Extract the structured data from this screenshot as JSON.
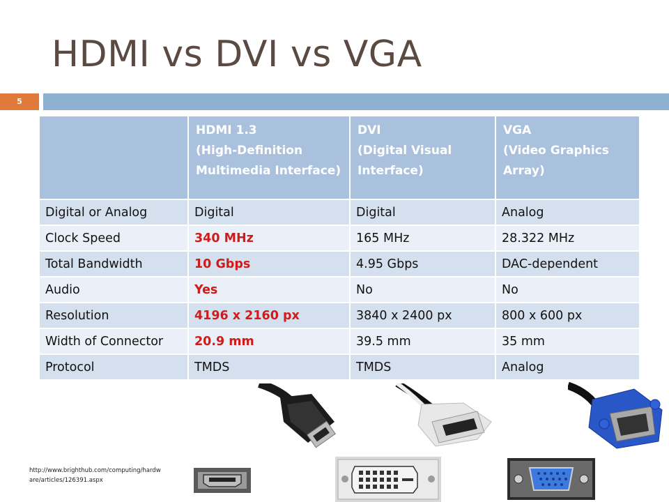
{
  "slide": {
    "title": "HDMI vs DVI vs VGA",
    "number": "5"
  },
  "table": {
    "headers": [
      "",
      "HDMI 1.3\n(High-Definition Multimedia Interface)",
      "DVI\n(Digital Visual Interface)",
      "VGA\n(Video Graphics Array)"
    ],
    "header_lines": [
      [],
      [
        "HDMI 1.3",
        "(High-Definition",
        "Multimedia Interface)"
      ],
      [
        "DVI",
        "(Digital Visual",
        "Interface)"
      ],
      [
        "VGA",
        "(Video Graphics",
        "Array)"
      ]
    ],
    "rows": [
      {
        "label": "Digital or Analog",
        "hdmi": "Digital",
        "dvi": "Digital",
        "vga": "Analog",
        "hdmi_highlight": false
      },
      {
        "label": "Clock Speed",
        "hdmi": "340 MHz",
        "dvi": "165 MHz",
        "vga": "28.322 MHz",
        "hdmi_highlight": true
      },
      {
        "label": "Total Bandwidth",
        "hdmi": "10 Gbps",
        "dvi": "4.95 Gbps",
        "vga": "DAC-dependent",
        "hdmi_highlight": true
      },
      {
        "label": "Audio",
        "hdmi": "Yes",
        "dvi": "No",
        "vga": "No",
        "hdmi_highlight": true
      },
      {
        "label": "Resolution",
        "hdmi": "4196 x 2160 px",
        "dvi": "3840 x 2400 px",
        "vga": "800 x 600 px",
        "hdmi_highlight": true
      },
      {
        "label": "Width of Connector",
        "hdmi": "20.9 mm",
        "dvi": "39.5 mm",
        "vga": "35 mm",
        "hdmi_highlight": true
      },
      {
        "label": "Protocol",
        "hdmi": "TMDS",
        "dvi": "TMDS",
        "vga": "Analog",
        "hdmi_highlight": false
      }
    ]
  },
  "source": {
    "line1": "http://www.brighthub.com/computing/hardw",
    "line2": "are/articles/126391.aspx"
  },
  "colors": {
    "accent_orange": "#e07a3a",
    "bar_blue": "#8eb0d1",
    "header_blue": "#a9c1dd",
    "highlight_red": "#d11a1a"
  },
  "images": [
    {
      "name": "hdmi-cable-image"
    },
    {
      "name": "dvi-cable-image"
    },
    {
      "name": "vga-cable-image"
    },
    {
      "name": "hdmi-port-image"
    },
    {
      "name": "dvi-port-image"
    },
    {
      "name": "vga-port-image"
    }
  ]
}
